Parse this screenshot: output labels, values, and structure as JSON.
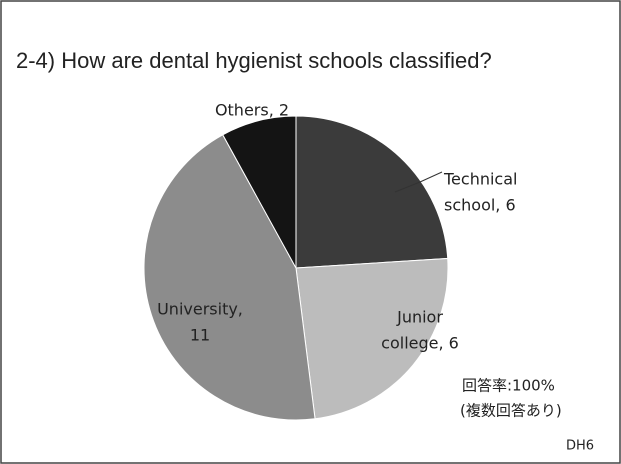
{
  "chart_data": {
    "type": "pie",
    "title": "2-4) How are dental hygienist schools classified?",
    "values": [
      6,
      6,
      11,
      2
    ],
    "value_labels": [
      [
        "Technical",
        "school, 6"
      ],
      [
        "Junior",
        "college, 6"
      ],
      [
        "University,",
        "11"
      ],
      [
        "Others, 2"
      ]
    ],
    "colors": [
      "#3b3b3b",
      "#bcbcbc",
      "#8c8c8c",
      "#141414"
    ],
    "annotations": [
      "回答率:100%",
      "(複数回答あり)",
      "DH6"
    ]
  }
}
